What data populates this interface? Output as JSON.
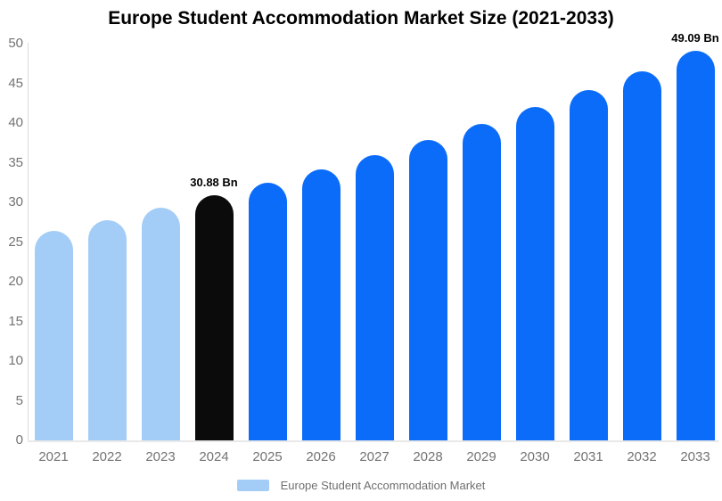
{
  "chart_data": {
    "type": "bar",
    "title": "Europe Student Accommodation Market Size (2021-2033)",
    "categories": [
      "2021",
      "2022",
      "2023",
      "2024",
      "2025",
      "2026",
      "2027",
      "2028",
      "2029",
      "2030",
      "2031",
      "2032",
      "2033"
    ],
    "values": [
      26.4,
      27.8,
      29.3,
      30.88,
      32.5,
      34.2,
      36.0,
      37.9,
      39.9,
      42.0,
      44.2,
      46.5,
      49.09
    ],
    "unit": "Bn",
    "xlabel": "",
    "ylabel": "",
    "ylim": [
      0,
      50
    ],
    "yticks": [
      0,
      5,
      10,
      15,
      20,
      25,
      30,
      35,
      40,
      45,
      50
    ],
    "grid": false,
    "legend_position": "bottom",
    "bar_colors": [
      "#A3CDF7",
      "#A3CDF7",
      "#A3CDF7",
      "#0B0B0B",
      "#0B6CFA",
      "#0B6CFA",
      "#0B6CFA",
      "#0B6CFA",
      "#0B6CFA",
      "#0B6CFA",
      "#0B6CFA",
      "#0B6CFA",
      "#0B6CFA"
    ],
    "annotations": [
      {
        "category": "2024",
        "text": "30.88 Bn"
      },
      {
        "category": "2033",
        "text": "49.09 Bn"
      }
    ]
  },
  "legend": {
    "label": "Europe Student Accommodation Market",
    "swatch_color": "#A3CDF7"
  },
  "colors": {
    "background": "#FFFFFF",
    "title_text": "#000000",
    "axis_line": "#D9D9D9",
    "baseline": "#E9E9E9",
    "tick_label": "#737373",
    "legend_text": "#6F6F6F",
    "annotation_text": "#000000"
  }
}
